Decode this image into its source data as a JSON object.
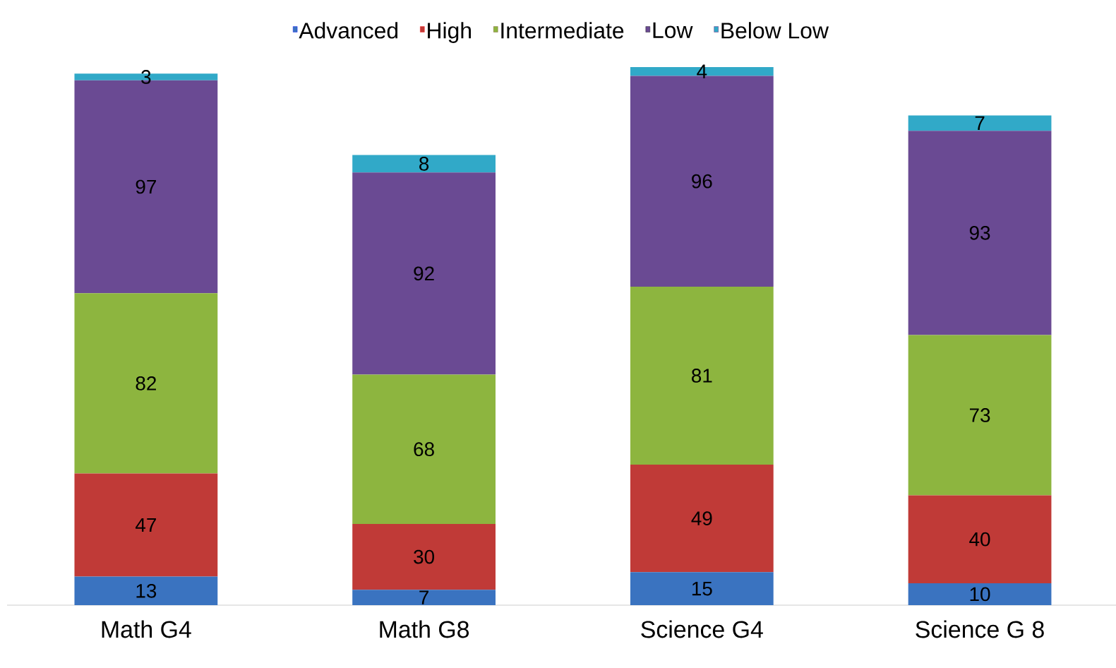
{
  "chart_data": {
    "type": "bar",
    "stacked": true,
    "legend": "top",
    "data_labels": true,
    "tick_labels": "x",
    "categories": [
      "Math G4",
      "Math G8",
      "Science G4",
      "Science G 8"
    ],
    "series": [
      {
        "name": "Advanced",
        "color": "#3a73c0",
        "values": [
          13,
          7,
          15,
          10
        ]
      },
      {
        "name": "High",
        "color": "#c03a37",
        "values": [
          47,
          30,
          49,
          40
        ]
      },
      {
        "name": "Intermediate",
        "color": "#8db53f",
        "values": [
          82,
          68,
          81,
          73
        ]
      },
      {
        "name": "Low",
        "color": "#6a4a93",
        "values": [
          97,
          92,
          96,
          93
        ]
      },
      {
        "name": "Below Low",
        "color": "#31a9c8",
        "values": [
          3,
          8,
          4,
          7
        ]
      }
    ]
  }
}
